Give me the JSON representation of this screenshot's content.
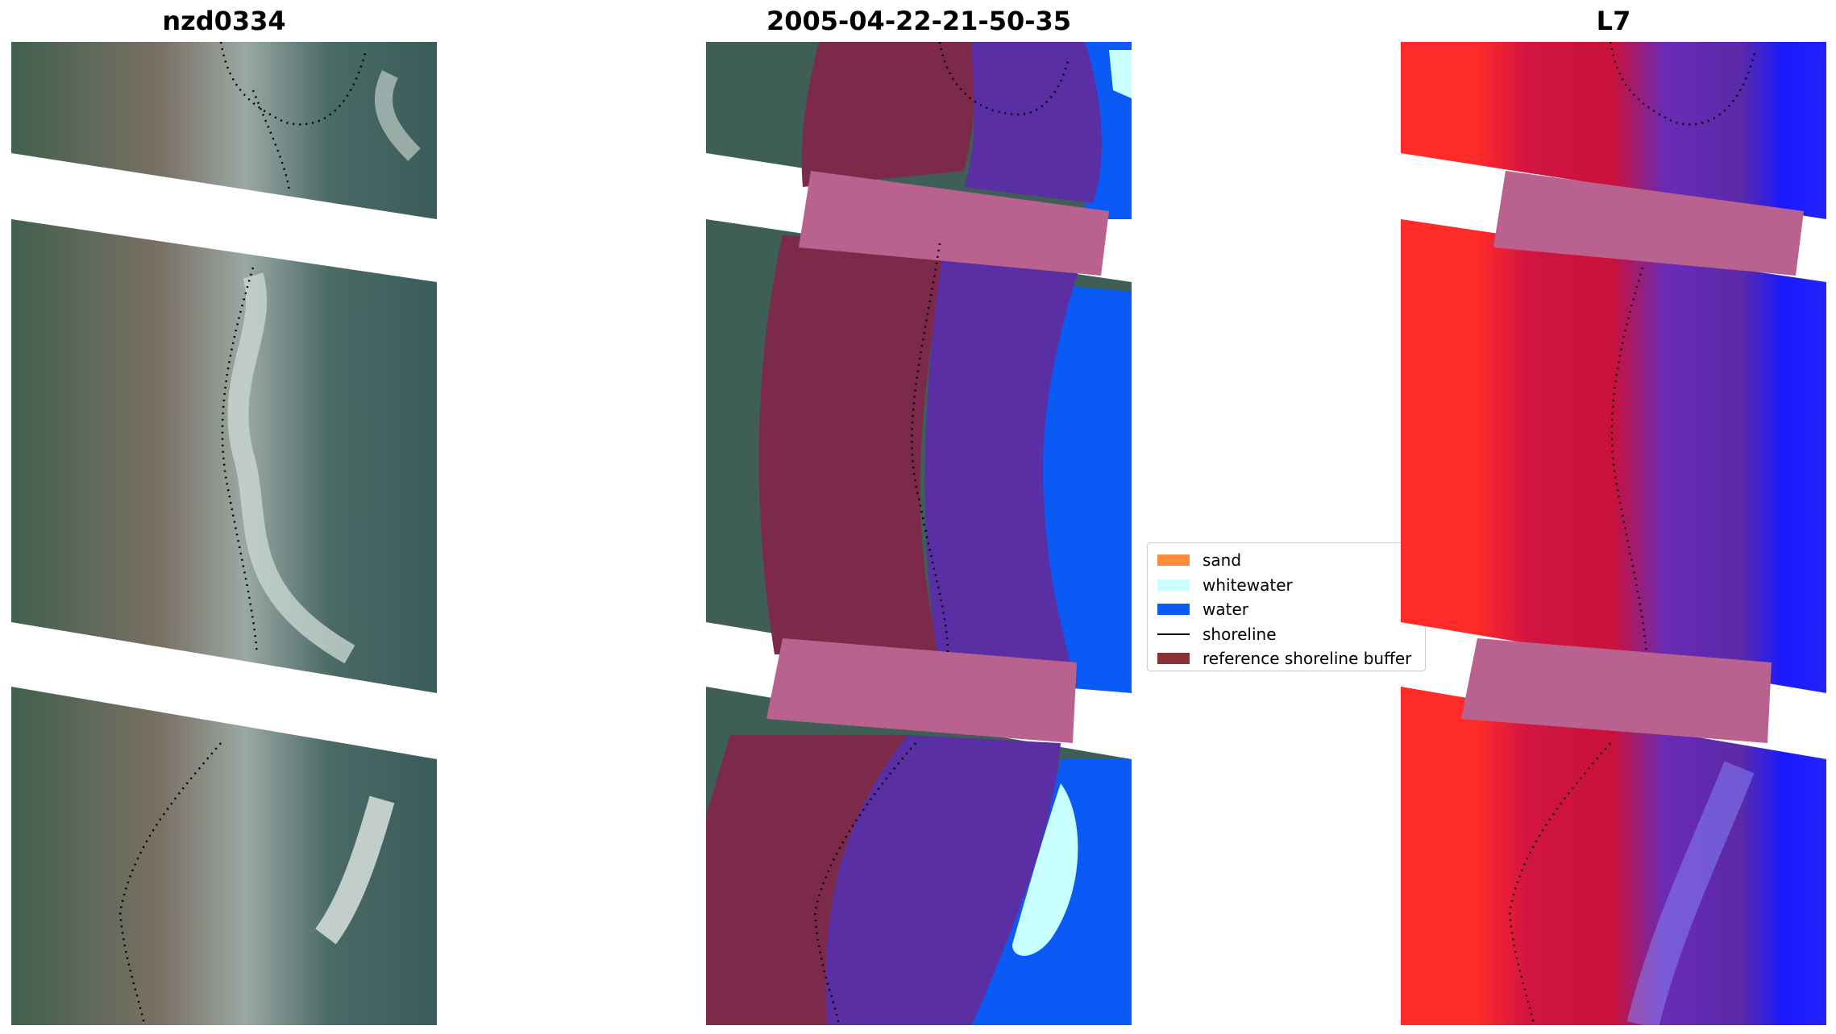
{
  "panels": [
    {
      "title": "nzd0334",
      "content": "RGB satellite image with dotted shoreline"
    },
    {
      "title": "2005-04-22-21-50-35",
      "content": "classified image overlay"
    },
    {
      "title": "L7",
      "content": "MNDWI index image"
    }
  ],
  "legend": {
    "items": [
      {
        "label": "sand",
        "color": "#ff8c3c",
        "kind": "patch"
      },
      {
        "label": "whitewater",
        "color": "#c8ffff",
        "kind": "patch"
      },
      {
        "label": "water",
        "color": "#0a5af5",
        "kind": "patch"
      },
      {
        "label": "shoreline",
        "color": "#000000",
        "kind": "line"
      },
      {
        "label": "reference shoreline buffer",
        "color": "#8b2f36",
        "kind": "patch"
      }
    ]
  },
  "colors": {
    "land_rgb": "#3c5a52",
    "river_rgb": "#7f8a80",
    "classified_land": "#7d2a4a",
    "classified_river": "#5a2fa3",
    "classified_water": "#0a5af5",
    "buffer_band": "#b9628f",
    "index_red": "#ff2a2a",
    "index_crimson": "#c8123c",
    "index_purple": "#6a2bb5",
    "index_blue": "#1a1aff"
  }
}
